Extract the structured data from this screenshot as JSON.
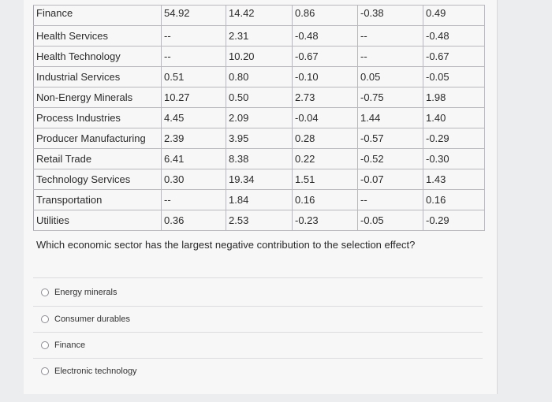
{
  "table": {
    "rows": [
      [
        "Finance",
        "54.92",
        "14.42",
        "0.86",
        "-0.38",
        "0.49"
      ],
      [
        "Health Services",
        "--",
        "2.31",
        "-0.48",
        "--",
        "-0.48"
      ],
      [
        "Health Technology",
        "--",
        "10.20",
        "-0.67",
        "--",
        "-0.67"
      ],
      [
        "Industrial Services",
        "0.51",
        "0.80",
        "-0.10",
        "0.05",
        "-0.05"
      ],
      [
        "Non-Energy Minerals",
        "10.27",
        "0.50",
        "2.73",
        "-0.75",
        "1.98"
      ],
      [
        "Process Industries",
        "4.45",
        "2.09",
        "-0.04",
        "1.44",
        "1.40"
      ],
      [
        "Producer Manufacturing",
        "2.39",
        "3.95",
        "0.28",
        "-0.57",
        "-0.29"
      ],
      [
        "Retail Trade",
        "6.41",
        "8.38",
        "0.22",
        "-0.52",
        "-0.30"
      ],
      [
        "Technology Services",
        "0.30",
        "19.34",
        "1.51",
        "-0.07",
        "1.43"
      ],
      [
        "Transportation",
        "--",
        "1.84",
        "0.16",
        "--",
        "0.16"
      ],
      [
        "Utilities",
        "0.36",
        "2.53",
        "-0.23",
        "-0.05",
        "-0.29"
      ]
    ]
  },
  "question": "Which economic sector has the largest negative contribution to the selection effect?",
  "options": [
    "Energy minerals",
    "Consumer durables",
    "Finance",
    "Electronic technology"
  ]
}
